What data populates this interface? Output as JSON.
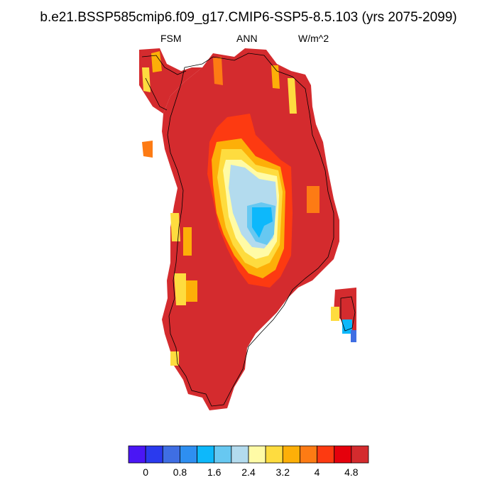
{
  "figure": {
    "title": "b.e21.BSSP585cmip6.f09_g17.CMIP6-SSP5-8.5.103 (yrs 2075-2099)",
    "left_label": "FSM",
    "center_label": "ANN",
    "right_label": "W/m^2"
  },
  "colorbar": {
    "colors": [
      "#4a16f5",
      "#2a3aee",
      "#3f6ee3",
      "#2e8ff1",
      "#0db8fb",
      "#67c8f1",
      "#b3dbee",
      "#fffba6",
      "#fedc3f",
      "#fdaf08",
      "#fd7b14",
      "#fd3a11",
      "#e5000c",
      "#d42b2e"
    ],
    "tick_labels": [
      "0",
      "0.8",
      "1.6",
      "2.4",
      "3.2",
      "4",
      "4.8"
    ]
  }
}
